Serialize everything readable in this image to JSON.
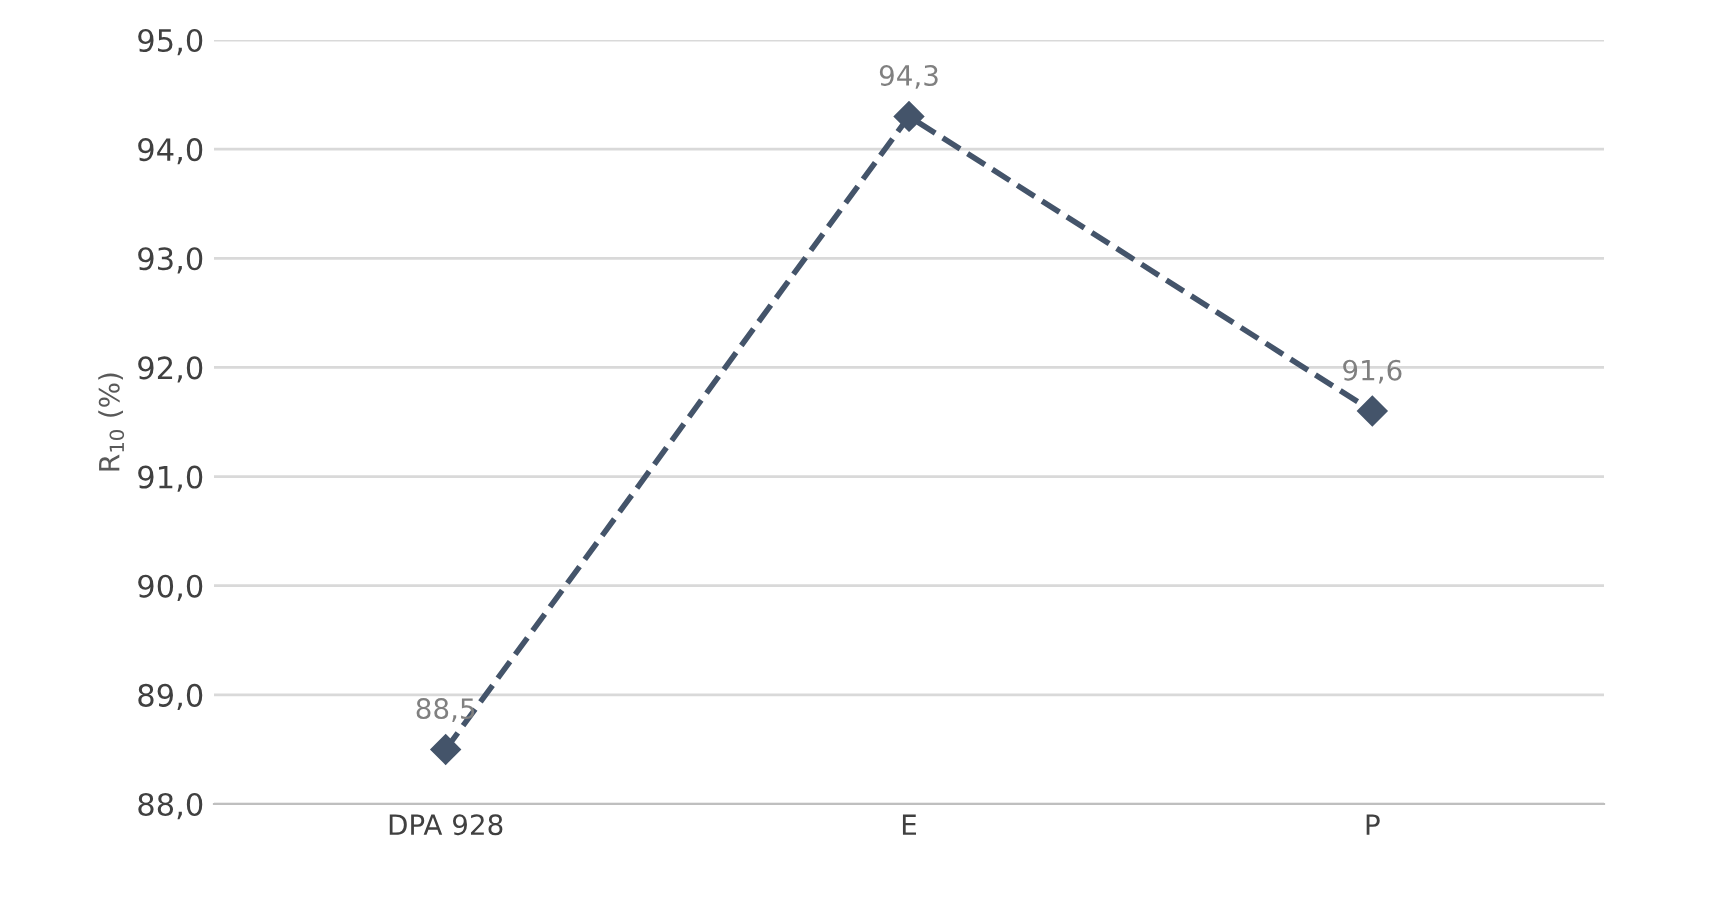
{
  "chart_data": {
    "type": "line",
    "ylabel": "R$_{10}$ (%)",
    "categories": [
      "DPA 928",
      "E",
      "P"
    ],
    "series": [
      {
        "color": "#44546a",
        "values": [
          88.5,
          94.3,
          91.6
        ],
        "value_labels": [
          "88,5",
          "94,3",
          "91,6"
        ]
      }
    ],
    "ylim": [
      88,
      95
    ],
    "yticks": [
      {
        "value": 88,
        "label": "88,0"
      },
      {
        "value": 89,
        "label": "89,0"
      },
      {
        "value": 90,
        "label": "90,0"
      },
      {
        "value": 91,
        "label": "91,0"
      },
      {
        "value": 92,
        "label": "92,0"
      },
      {
        "value": 93,
        "label": "93,0"
      },
      {
        "value": 94,
        "label": "94,0"
      },
      {
        "value": 95,
        "label": "95,0"
      }
    ],
    "grid": "y",
    "legend": false,
    "marker": "diamond",
    "line_style": "dashed"
  }
}
